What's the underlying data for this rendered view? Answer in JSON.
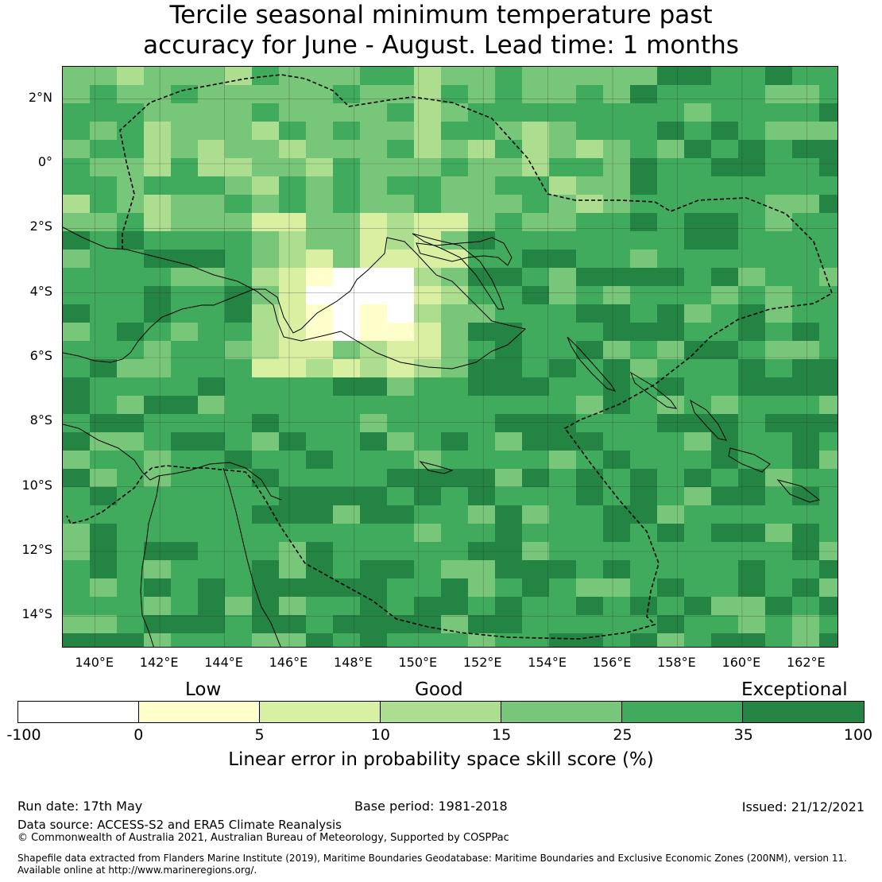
{
  "title": {
    "line1": "Tercile seasonal minimum temperature past",
    "line2": "accuracy for June - August. Lead time: 1 months"
  },
  "map": {
    "lat_ticks": [
      "2°N",
      "0°",
      "2°S",
      "4°S",
      "6°S",
      "8°S",
      "10°S",
      "12°S",
      "14°S"
    ],
    "lat_values": [
      2,
      0,
      -2,
      -4,
      -6,
      -8,
      -10,
      -12,
      -14
    ],
    "lon_ticks": [
      "140°E",
      "142°E",
      "144°E",
      "146°E",
      "148°E",
      "150°E",
      "152°E",
      "154°E",
      "156°E",
      "158°E",
      "160°E",
      "162°E"
    ],
    "lon_values": [
      140,
      142,
      144,
      146,
      148,
      150,
      152,
      154,
      156,
      158,
      160,
      162
    ],
    "lon_range": [
      139,
      163
    ],
    "lat_range": [
      -15,
      3
    ],
    "grid": true,
    "boundary_style": "dashed"
  },
  "colorbar": {
    "headings": {
      "low": "Low",
      "good": "Good",
      "exceptional": "Exceptional"
    },
    "tick_labels": [
      "-100",
      "0",
      "5",
      "10",
      "15",
      "25",
      "35",
      "100"
    ],
    "colors": [
      "#ffffff",
      "#ffffcc",
      "#d9f0a3",
      "#addd8e",
      "#78c679",
      "#41ab5d",
      "#238443"
    ],
    "label": "Linear error in probability space skill score (%)"
  },
  "footer": {
    "run_date": "Run date: 17th May",
    "base_period": "Base period: 1981-2018",
    "issued": "Issued: 21/12/2021",
    "data_source": "Data source: ACCESS-S2 and ERA5 Climate Reanalysis",
    "copyright": "© Commonwealth of Australia 2021, Australian Bureau of Meteorology, Supported by COSPPac",
    "shapefile_line1": "Shapefile data extracted from Flanders Marine Institute (2019), Maritime Boundaries Geodatabase: Maritime Boundaries and Exclusive Economic Zones (200NM), version 11.",
    "shapefile_line2": "Available online at http://www.marineregions.org/."
  }
}
